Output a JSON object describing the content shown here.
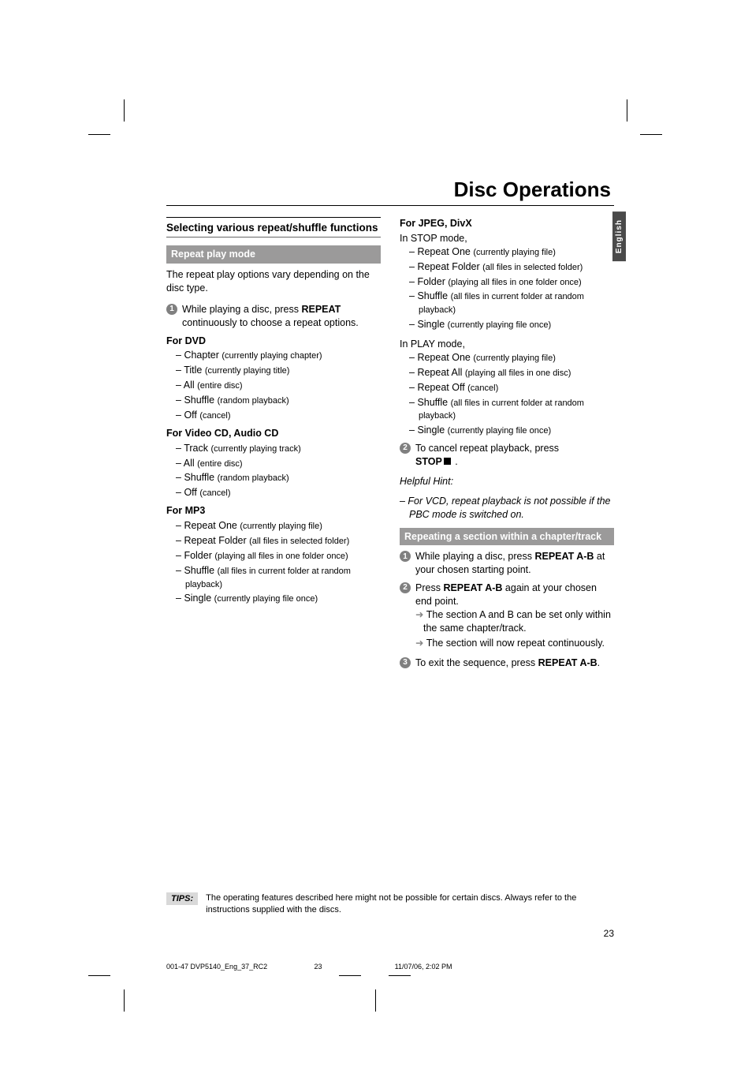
{
  "page_title": "Disc Operations",
  "lang_tab": "English",
  "section_heading": "Selecting various repeat/shuffle functions",
  "grey_bar_1": "Repeat play mode",
  "intro_para": "The repeat play options vary depending on the disc type.",
  "step1_text_a": "While playing a disc, press ",
  "step1_bold": "REPEAT",
  "step1_text_b": " continuously to choose a repeat options.",
  "dvd_head": "For DVD",
  "dvd_items": [
    {
      "t": "Chapter",
      "n": "(currently playing chapter)"
    },
    {
      "t": "Title",
      "n": "(currently playing title)"
    },
    {
      "t": "All",
      "n": "(entire disc)"
    },
    {
      "t": "Shuffle",
      "n": "(random playback)"
    },
    {
      "t": "Off",
      "n": "(cancel)"
    }
  ],
  "vcd_head": "For Video CD, Audio CD",
  "vcd_items": [
    {
      "t": "Track",
      "n": "(currently playing track)"
    },
    {
      "t": "All",
      "n": "(entire disc)"
    },
    {
      "t": "Shuffle",
      "n": "(random playback)"
    },
    {
      "t": "Off",
      "n": "(cancel)"
    }
  ],
  "mp3_head": "For MP3",
  "mp3_items": [
    {
      "t": "Repeat One",
      "n": "(currently playing file)"
    },
    {
      "t": "Repeat Folder",
      "n": "(all files in selected folder)"
    },
    {
      "t": "Folder",
      "n": "(playing all files in one folder once)"
    },
    {
      "t": "Shuffle",
      "n": "(all files in current folder at random playback)"
    },
    {
      "t": "Single",
      "n": "(currently playing file once)"
    }
  ],
  "jpeg_head": "For JPEG, DivX",
  "jpeg_stop_intro": "In STOP mode,",
  "jpeg_stop_items": [
    {
      "t": "Repeat One",
      "n": "(currently playing file)"
    },
    {
      "t": "Repeat Folder",
      "n": "(all files in selected folder)"
    },
    {
      "t": "Folder",
      "n": "(playing all files in one folder once)"
    },
    {
      "t": "Shuffle",
      "n": "(all files in current folder at random playback)"
    },
    {
      "t": "Single",
      "n": "(currently playing file once)"
    }
  ],
  "jpeg_play_intro": "In PLAY mode,",
  "jpeg_play_items": [
    {
      "t": "Repeat One",
      "n": "(currently playing file)"
    },
    {
      "t": "Repeat All",
      "n": "(playing all files in one disc)"
    },
    {
      "t": "Repeat Off",
      "n": "(cancel)"
    },
    {
      "t": "Shuffle",
      "n": "(all files in current folder at random playback)"
    },
    {
      "t": "Single",
      "n": "(currently playing file once)"
    }
  ],
  "step2_text_a": "To cancel repeat playback, press ",
  "step2_bold": "STOP",
  "step2_text_b": " .",
  "hint_label": "Helpful Hint:",
  "hint_body": "–   For VCD, repeat playback is not possible if the PBC mode is switched on.",
  "grey_bar_2": "Repeating a section within a chapter/track",
  "r_step1_a": "While playing a disc, press ",
  "r_step1_bold": "REPEAT A-B",
  "r_step1_b": " at your chosen starting point.",
  "r_step2_a": "Press ",
  "r_step2_bold": "REPEAT A-B",
  "r_step2_b": " again at your chosen end point.",
  "r_step2_arrow1": "The section A and B can be set only within the same chapter/track.",
  "r_step2_arrow2": "The section will now repeat continuously.",
  "r_step3_a": "To exit the sequence, press ",
  "r_step3_bold": "REPEAT A-B",
  "r_step3_b": ".",
  "tips_label": "TIPS:",
  "tips_text": "The operating features described here might not be possible for certain discs.  Always refer to the instructions supplied with the discs.",
  "page_num": "23",
  "footer_file": "001-47 DVP5140_Eng_37_RC2",
  "footer_page": "23",
  "footer_date": "11/07/06, 2:02 PM"
}
